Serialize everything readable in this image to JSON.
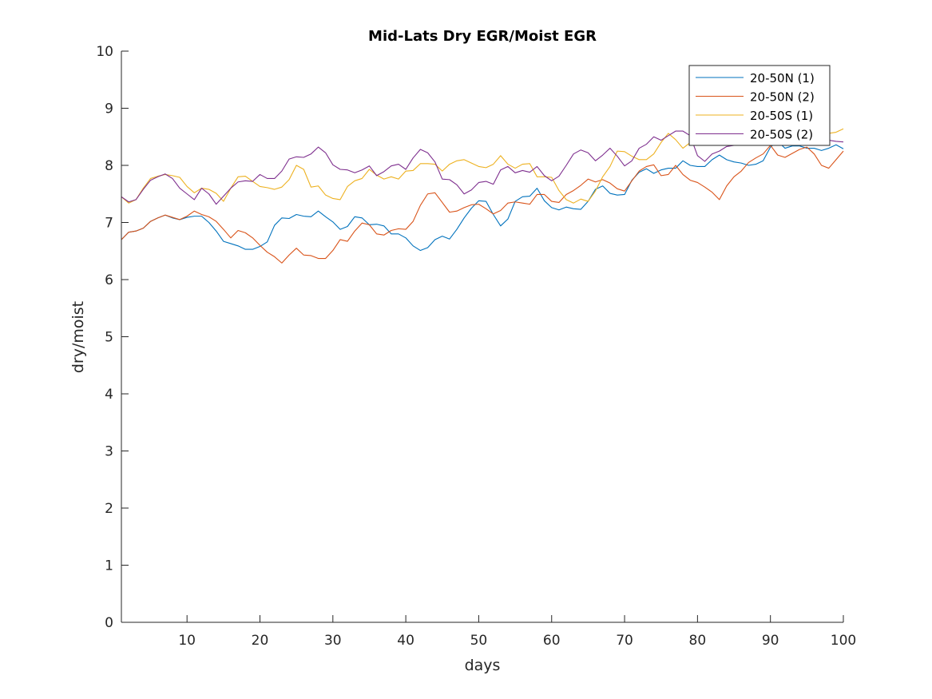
{
  "chart_data": {
    "type": "line",
    "title": "Mid-Lats Dry EGR/Moist EGR",
    "xlabel": "days",
    "ylabel": "dry/moist",
    "xlim": [
      1,
      100
    ],
    "ylim": [
      0,
      10
    ],
    "xticks": [
      "10",
      "20",
      "30",
      "40",
      "50",
      "60",
      "70",
      "80",
      "90",
      "100"
    ],
    "yticks": [
      "0",
      "1",
      "2",
      "3",
      "4",
      "5",
      "6",
      "7",
      "8",
      "9",
      "10"
    ],
    "grid": false,
    "legend_position": "top-right",
    "x": [
      1,
      2,
      3,
      4,
      5,
      6,
      7,
      8,
      9,
      10,
      11,
      12,
      13,
      14,
      15,
      16,
      17,
      18,
      19,
      20,
      21,
      22,
      23,
      24,
      25,
      26,
      27,
      28,
      29,
      30,
      31,
      32,
      33,
      34,
      35,
      36,
      37,
      38,
      39,
      40,
      41,
      42,
      43,
      44,
      45,
      46,
      47,
      48,
      49,
      50,
      51,
      52,
      53,
      54,
      55,
      56,
      57,
      58,
      59,
      60,
      61,
      62,
      63,
      64,
      65,
      66,
      67,
      68,
      69,
      70,
      71,
      72,
      73,
      74,
      75,
      76,
      77,
      78,
      79,
      80,
      81,
      82,
      83,
      84,
      85,
      86,
      87,
      88,
      89,
      90,
      91,
      92,
      93,
      94,
      95,
      96,
      97,
      98,
      99,
      100
    ],
    "series": [
      {
        "name": "20-50N (1)",
        "color": "#0072BD",
        "values": [
          6.7,
          6.83,
          6.85,
          6.9,
          7.02,
          7.08,
          7.13,
          7.08,
          7.05,
          7.09,
          7.11,
          7.11,
          7.0,
          6.85,
          6.67,
          6.63,
          6.59,
          6.53,
          6.53,
          6.58,
          6.66,
          6.95,
          7.08,
          7.07,
          7.14,
          7.11,
          7.1,
          7.2,
          7.1,
          7.01,
          6.88,
          6.93,
          7.1,
          7.08,
          6.96,
          6.97,
          6.94,
          6.8,
          6.8,
          6.73,
          6.59,
          6.51,
          6.56,
          6.7,
          6.76,
          6.71,
          6.88,
          7.08,
          7.25,
          7.38,
          7.37,
          7.14,
          6.94,
          7.06,
          7.37,
          7.45,
          7.46,
          7.6,
          7.38,
          7.26,
          7.22,
          7.27,
          7.24,
          7.23,
          7.37,
          7.58,
          7.64,
          7.51,
          7.48,
          7.49,
          7.74,
          7.88,
          7.94,
          7.86,
          7.92,
          7.95,
          7.95,
          8.08,
          8.0,
          7.98,
          7.98,
          8.1,
          8.18,
          8.1,
          8.06,
          8.04,
          8.0,
          8.02,
          8.08,
          8.32,
          8.42,
          8.3,
          8.34,
          8.34,
          8.3,
          8.3,
          8.26,
          8.3,
          8.36,
          8.29
        ]
      },
      {
        "name": "20-50N (2)",
        "color": "#D95319",
        "values": [
          6.7,
          6.83,
          6.85,
          6.9,
          7.02,
          7.08,
          7.13,
          7.09,
          7.05,
          7.11,
          7.2,
          7.14,
          7.1,
          7.02,
          6.88,
          6.73,
          6.86,
          6.82,
          6.73,
          6.6,
          6.48,
          6.4,
          6.29,
          6.43,
          6.55,
          6.43,
          6.42,
          6.37,
          6.37,
          6.51,
          6.7,
          6.67,
          6.85,
          6.99,
          6.96,
          6.8,
          6.78,
          6.86,
          6.89,
          6.88,
          7.02,
          7.3,
          7.5,
          7.52,
          7.35,
          7.18,
          7.2,
          7.26,
          7.31,
          7.32,
          7.24,
          7.15,
          7.21,
          7.34,
          7.36,
          7.34,
          7.32,
          7.49,
          7.49,
          7.37,
          7.35,
          7.49,
          7.56,
          7.65,
          7.76,
          7.71,
          7.75,
          7.69,
          7.59,
          7.55,
          7.73,
          7.9,
          7.98,
          8.01,
          7.82,
          7.84,
          8.0,
          7.84,
          7.74,
          7.7,
          7.62,
          7.53,
          7.4,
          7.64,
          7.8,
          7.9,
          8.05,
          8.13,
          8.2,
          8.35,
          8.18,
          8.14,
          8.21,
          8.28,
          8.32,
          8.2,
          8.0,
          7.95,
          8.1,
          8.25
        ]
      },
      {
        "name": "20-50S (1)",
        "color": "#EDB120",
        "values": [
          7.45,
          7.34,
          7.4,
          7.6,
          7.77,
          7.81,
          7.84,
          7.82,
          7.79,
          7.63,
          7.52,
          7.6,
          7.58,
          7.51,
          7.37,
          7.6,
          7.8,
          7.81,
          7.72,
          7.63,
          7.61,
          7.58,
          7.62,
          7.75,
          8.0,
          7.93,
          7.62,
          7.64,
          7.48,
          7.42,
          7.4,
          7.63,
          7.73,
          7.77,
          7.93,
          7.83,
          7.76,
          7.8,
          7.76,
          7.9,
          7.91,
          8.03,
          8.03,
          8.02,
          7.9,
          8.02,
          8.08,
          8.1,
          8.04,
          7.98,
          7.96,
          8.02,
          8.17,
          8.02,
          7.95,
          8.02,
          8.03,
          7.8,
          7.8,
          7.79,
          7.56,
          7.4,
          7.34,
          7.41,
          7.37,
          7.55,
          7.8,
          7.98,
          8.25,
          8.24,
          8.16,
          8.1,
          8.1,
          8.2,
          8.4,
          8.56,
          8.45,
          8.3,
          8.4,
          8.44,
          8.38,
          8.42,
          8.4,
          8.4,
          8.45,
          8.46,
          8.44,
          8.56,
          8.4,
          8.46,
          8.5,
          8.5,
          8.48,
          8.4,
          8.44,
          8.48,
          8.52,
          8.56,
          8.58,
          8.64
        ]
      },
      {
        "name": "20-50S (2)",
        "color": "#7E2F8E",
        "values": [
          7.45,
          7.36,
          7.4,
          7.58,
          7.74,
          7.8,
          7.85,
          7.77,
          7.6,
          7.5,
          7.4,
          7.6,
          7.5,
          7.32,
          7.46,
          7.6,
          7.71,
          7.73,
          7.72,
          7.84,
          7.77,
          7.77,
          7.9,
          8.11,
          8.15,
          8.14,
          8.2,
          8.32,
          8.22,
          8.01,
          7.93,
          7.92,
          7.87,
          7.92,
          7.99,
          7.82,
          7.89,
          7.99,
          8.02,
          7.93,
          8.13,
          8.28,
          8.22,
          8.06,
          7.76,
          7.75,
          7.66,
          7.5,
          7.57,
          7.7,
          7.72,
          7.67,
          7.92,
          7.98,
          7.87,
          7.91,
          7.88,
          7.98,
          7.82,
          7.73,
          7.81,
          8.0,
          8.2,
          8.27,
          8.22,
          8.08,
          8.18,
          8.3,
          8.16,
          7.99,
          8.08,
          8.3,
          8.37,
          8.5,
          8.44,
          8.52,
          8.6,
          8.6,
          8.52,
          8.17,
          8.07,
          8.2,
          8.25,
          8.33,
          8.35,
          8.37,
          8.4,
          8.35,
          8.5,
          8.45,
          8.42,
          8.43,
          8.44,
          8.38,
          8.36,
          8.45,
          8.46,
          8.44,
          8.42,
          8.41
        ]
      }
    ]
  }
}
